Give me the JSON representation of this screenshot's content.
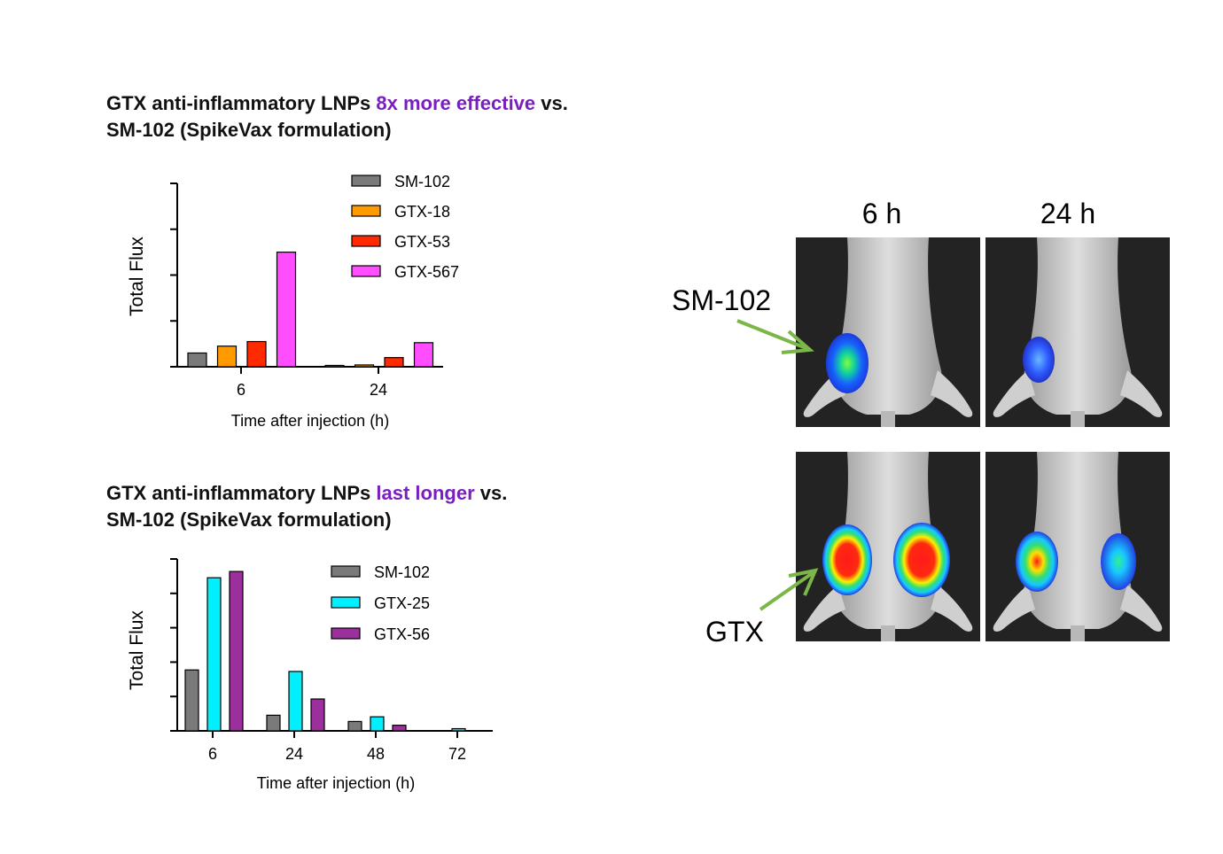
{
  "headings": [
    {
      "pre": "GTX anti-inflammatory LNPs ",
      "highlight": "8x more effective",
      "post": " vs.",
      "line2": "SM-102 (SpikeVax formulation)"
    },
    {
      "pre": "GTX anti-inflammatory LNPs ",
      "highlight": "last longer",
      "post": " vs.",
      "line2": "SM-102 (SpikeVax formulation)"
    }
  ],
  "colors": {
    "highlight": "#7a1fbf",
    "axis": "#000000",
    "arrow": "#7ab648"
  },
  "chart_data": [
    {
      "type": "bar",
      "title": "GTX anti-inflammatory LNPs 8x more effective vs. SM-102 (SpikeVax formulation)",
      "xlabel": "Time after injection (h)",
      "ylabel": "Total Flux",
      "categories": [
        "6",
        "24"
      ],
      "ylim": [
        0,
        8
      ],
      "legend_position": "top-right",
      "series": [
        {
          "name": "SM-102",
          "color": "#7a7a7a",
          "values": [
            0.6,
            0.05
          ]
        },
        {
          "name": "GTX-18",
          "color": "#ff9a00",
          "values": [
            0.9,
            0.08
          ]
        },
        {
          "name": "GTX-53",
          "color": "#ff2a00",
          "values": [
            1.1,
            0.4
          ]
        },
        {
          "name": "GTX-567",
          "color": "#ff4dff",
          "values": [
            5.0,
            1.05
          ]
        }
      ]
    },
    {
      "type": "bar",
      "title": "GTX anti-inflammatory LNPs last longer vs. SM-102 (SpikeVax formulation)",
      "xlabel": "Time after injection (h)",
      "ylabel": "Total Flux",
      "categories": [
        "6",
        "24",
        "48",
        "72"
      ],
      "ylim": [
        0,
        5.5
      ],
      "legend_position": "top-right",
      "series": [
        {
          "name": "SM-102",
          "color": "#7a7a7a",
          "values": [
            1.95,
            0.5,
            0.3,
            0
          ]
        },
        {
          "name": "GTX-25",
          "color": "#00f0ff",
          "values": [
            4.9,
            1.9,
            0.45,
            0.07
          ]
        },
        {
          "name": "GTX-56",
          "color": "#9b2f9b",
          "values": [
            5.1,
            1.02,
            0.18,
            0
          ]
        }
      ]
    }
  ],
  "imaging": {
    "columns": [
      "6 h",
      "24 h"
    ],
    "rows": [
      {
        "label": "SM-102"
      },
      {
        "label": "GTX"
      }
    ]
  }
}
